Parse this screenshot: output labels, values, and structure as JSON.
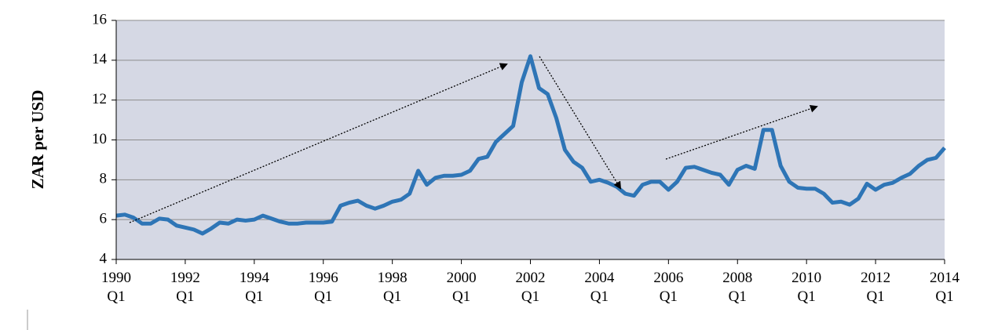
{
  "chart_data": {
    "type": "line",
    "y_label": "ZAR per USD",
    "categories": [
      "1990 Q1",
      null,
      null,
      null,
      null,
      null,
      null,
      null,
      "1992 Q1",
      null,
      null,
      null,
      null,
      null,
      null,
      null,
      "1994 Q1",
      null,
      null,
      null,
      null,
      null,
      null,
      null,
      "1996 Q1",
      null,
      null,
      null,
      null,
      null,
      null,
      null,
      "1998 Q1",
      null,
      null,
      null,
      null,
      null,
      null,
      null,
      "2000 Q1",
      null,
      null,
      null,
      null,
      null,
      null,
      null,
      "2002 Q1",
      null,
      null,
      null,
      null,
      null,
      null,
      null,
      "2004 Q1",
      null,
      null,
      null,
      null,
      null,
      null,
      null,
      "2006 Q1",
      null,
      null,
      null,
      null,
      null,
      null,
      null,
      "2008 Q1",
      null,
      null,
      null,
      null,
      null,
      null,
      null,
      "2010 Q1",
      null,
      null,
      null,
      null,
      null,
      null,
      null,
      "2012 Q1",
      null,
      null,
      null,
      null,
      null,
      null,
      null,
      "2014 Q1"
    ],
    "series": [
      {
        "name": "ZAR per USD",
        "color": "#2e75b6",
        "values": [
          6.2,
          6.25,
          6.1,
          5.8,
          5.8,
          6.05,
          6.0,
          5.7,
          5.6,
          5.5,
          5.3,
          5.55,
          5.85,
          5.8,
          6.0,
          5.95,
          6.0,
          6.2,
          6.05,
          5.9,
          5.8,
          5.8,
          5.85,
          5.85,
          5.85,
          5.9,
          6.7,
          6.85,
          6.95,
          6.7,
          6.55,
          6.7,
          6.9,
          7.0,
          7.3,
          8.45,
          7.75,
          8.1,
          8.2,
          8.2,
          8.25,
          8.45,
          9.05,
          9.15,
          9.9,
          10.3,
          10.7,
          12.9,
          14.2,
          12.6,
          12.3,
          11.1,
          9.5,
          8.9,
          8.6,
          7.9,
          8.0,
          7.85,
          7.65,
          7.3,
          7.2,
          7.75,
          7.9,
          7.9,
          7.5,
          7.9,
          8.6,
          8.65,
          8.5,
          8.35,
          8.25,
          7.75,
          8.5,
          8.7,
          8.55,
          10.5,
          10.5,
          8.7,
          7.9,
          7.6,
          7.55,
          7.55,
          7.3,
          6.85,
          6.9,
          6.75,
          7.05,
          7.8,
          7.5,
          7.75,
          7.85,
          8.1,
          8.3,
          8.7,
          9.0,
          9.1,
          9.6
        ]
      }
    ],
    "ylim": [
      4,
      16
    ],
    "yticks": [
      4,
      6,
      8,
      10,
      12,
      14,
      16
    ],
    "grid": true
  }
}
